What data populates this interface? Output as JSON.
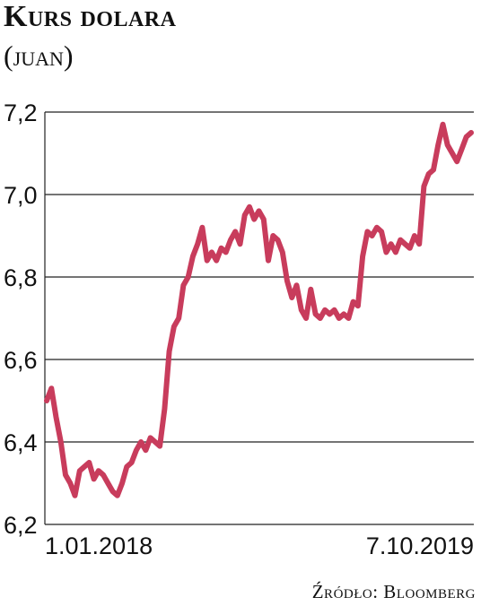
{
  "chart_data": {
    "type": "line",
    "title": "Kurs dolara",
    "subtitle": "(juan)",
    "source": "Źródło: Bloomberg",
    "ylim": [
      6.2,
      7.2
    ],
    "y_ticks": [
      "7,2",
      "7,0",
      "6,8",
      "6,6",
      "6,4",
      "6,2"
    ],
    "x_labels": [
      "1.01.2018",
      "7.10.2019"
    ],
    "grid": true,
    "line_color": "#c83c5c",
    "series": [
      {
        "values": [
          6.5,
          6.53,
          6.46,
          6.4,
          6.32,
          6.3,
          6.27,
          6.33,
          6.34,
          6.35,
          6.31,
          6.33,
          6.32,
          6.3,
          6.28,
          6.27,
          6.3,
          6.34,
          6.35,
          6.38,
          6.4,
          6.38,
          6.41,
          6.4,
          6.39,
          6.48,
          6.62,
          6.68,
          6.7,
          6.78,
          6.8,
          6.85,
          6.88,
          6.92,
          6.84,
          6.86,
          6.84,
          6.87,
          6.86,
          6.89,
          6.91,
          6.88,
          6.95,
          6.97,
          6.94,
          6.96,
          6.94,
          6.84,
          6.9,
          6.89,
          6.86,
          6.79,
          6.75,
          6.78,
          6.72,
          6.7,
          6.77,
          6.71,
          6.7,
          6.72,
          6.71,
          6.72,
          6.7,
          6.71,
          6.7,
          6.74,
          6.73,
          6.85,
          6.91,
          6.9,
          6.92,
          6.91,
          6.86,
          6.88,
          6.86,
          6.89,
          6.88,
          6.87,
          6.9,
          6.88,
          7.02,
          7.05,
          7.06,
          7.12,
          7.17,
          7.12,
          7.1,
          7.08,
          7.11,
          7.14,
          7.15
        ]
      }
    ]
  }
}
